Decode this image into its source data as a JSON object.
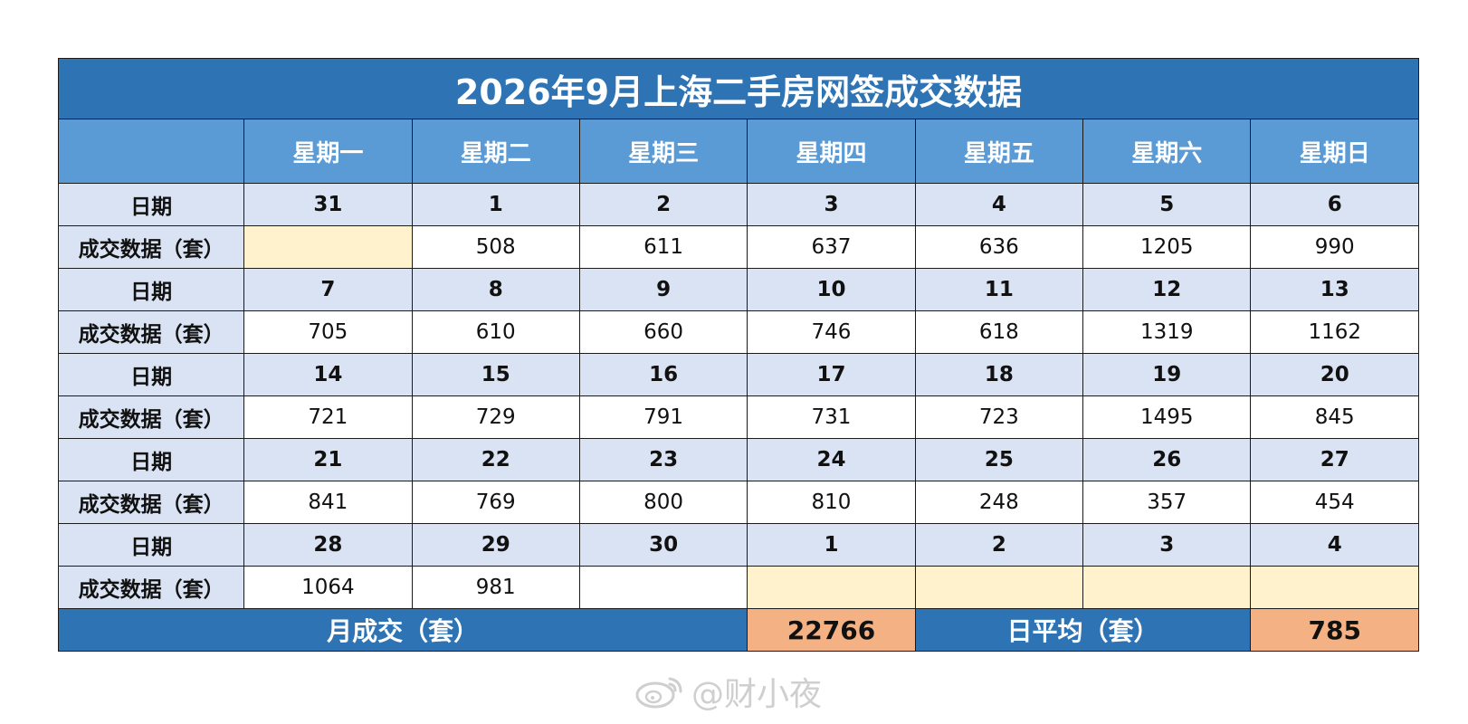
{
  "table": {
    "title": "2026年9月上海二手房网签成交数据",
    "weekdays": [
      "星期一",
      "星期二",
      "星期三",
      "星期四",
      "星期五",
      "星期六",
      "星期日"
    ],
    "date_label": "日期",
    "deal_label": "成交数据（套）",
    "weeks": [
      {
        "dates": [
          "31",
          "1",
          "2",
          "3",
          "4",
          "5",
          "6"
        ],
        "deals": [
          "",
          "508",
          "611",
          "637",
          "636",
          "1205",
          "990"
        ],
        "blank_yellow": [
          0
        ]
      },
      {
        "dates": [
          "7",
          "8",
          "9",
          "10",
          "11",
          "12",
          "13"
        ],
        "deals": [
          "705",
          "610",
          "660",
          "746",
          "618",
          "1319",
          "1162"
        ],
        "blank_yellow": []
      },
      {
        "dates": [
          "14",
          "15",
          "16",
          "17",
          "18",
          "19",
          "20"
        ],
        "deals": [
          "721",
          "729",
          "791",
          "731",
          "723",
          "1495",
          "845"
        ],
        "blank_yellow": []
      },
      {
        "dates": [
          "21",
          "22",
          "23",
          "24",
          "25",
          "26",
          "27"
        ],
        "deals": [
          "841",
          "769",
          "800",
          "810",
          "248",
          "357",
          "454"
        ],
        "blank_yellow": []
      },
      {
        "dates": [
          "28",
          "29",
          "30",
          "1",
          "2",
          "3",
          "4"
        ],
        "deals": [
          "1064",
          "981",
          "",
          "",
          "",
          "",
          ""
        ],
        "blank_yellow": [
          3,
          4,
          5,
          6
        ]
      }
    ],
    "summary": {
      "monthly_label": "月成交（套）",
      "monthly_value": "22766",
      "daily_label": "日平均（套）",
      "daily_value": "785"
    },
    "colors": {
      "title_bg": "#2e74b5",
      "header_bg": "#5b9bd5",
      "date_row_bg": "#dae3f3",
      "blank_cell_bg": "#fff2cc",
      "summary_value_bg": "#f4b183"
    }
  },
  "watermark": {
    "text": "@财小夜",
    "icon": "weibo-icon"
  }
}
